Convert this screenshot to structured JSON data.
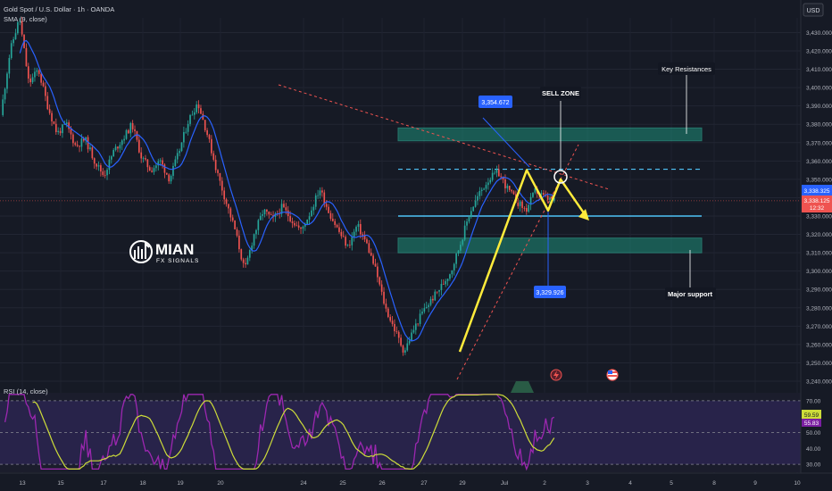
{
  "header": {
    "symbol": "Gold Spot / U.S. Dollar · 1h · OANDA",
    "indicator": "SMA (9, close)",
    "currency": "USD"
  },
  "logo": {
    "name": "MIAN",
    "tagline": "FX SIGNALS"
  },
  "price_axis": {
    "ticks": [
      "3,430.000",
      "3,420.000",
      "3,410.000",
      "3,400.000",
      "3,390.000",
      "3,380.000",
      "3,370.000",
      "3,360.000",
      "3,350.000",
      "3,340.000",
      "3,330.000",
      "3,320.000",
      "3,310.000",
      "3,300.000",
      "3,290.000",
      "3,280.000",
      "3,270.000",
      "3,260.000",
      "3,250.000",
      "3,240.000"
    ],
    "tick_values": [
      3430,
      3420,
      3410,
      3400,
      3390,
      3380,
      3370,
      3360,
      3350,
      3340,
      3330,
      3320,
      3310,
      3300,
      3290,
      3280,
      3270,
      3260,
      3250,
      3240
    ],
    "ylim": [
      3240,
      3438
    ],
    "badges": {
      "last": "3,338.325",
      "close": "3,338.125",
      "timer": "12:32"
    }
  },
  "time_axis": {
    "labels": [
      "13",
      "15",
      "17",
      "18",
      "19",
      "20",
      "24",
      "25",
      "26",
      "27",
      "29",
      "Jul",
      "2",
      "3",
      "4",
      "5",
      "8",
      "9",
      "10"
    ]
  },
  "annotations": {
    "key_resistance": "Key Resistances",
    "sell_zone": "SELL ZONE",
    "major_support": "Major support",
    "high_label": "3,354.672",
    "low_label": "3,329.926"
  },
  "rsi": {
    "title": "RSI (14, close)",
    "ticks": [
      "70.00",
      "60.00",
      "50.00",
      "40.00",
      "30.00"
    ],
    "tick_values": [
      70,
      60,
      50,
      40,
      30
    ],
    "ylim": [
      25,
      75
    ],
    "badges": {
      "value": "59.59",
      "ma": "55.83"
    }
  },
  "colors": {
    "background": "#161a25",
    "up": "#26a69a",
    "down": "#ef5350",
    "sma": "#2962ff",
    "zone": "#1e8f7a",
    "projection": "#ffeb3b",
    "annotation": "#2962ff",
    "rsi_line": "#9c27b0",
    "rsi_ma": "#cddc39"
  },
  "chart_data": {
    "type": "candlestick",
    "symbol": "XAUUSD",
    "timeframe": "1h",
    "ylim": [
      3240,
      3438
    ],
    "resistance_zone": [
      3371,
      3378
    ],
    "support_zone": [
      3310,
      3318
    ],
    "resistance_level": 3355.5,
    "support_level": 3330,
    "last_price": 3338.325,
    "swing_high": 3354.672,
    "swing_low": 3329.926,
    "projection": [
      3256,
      3355,
      3333,
      3350,
      3329
    ],
    "rsi_last": 59.59,
    "rsi_ma_last": 55.83,
    "keypoints": [
      3385,
      3420,
      3438,
      3402,
      3410,
      3390,
      3375,
      3380,
      3368,
      3372,
      3360,
      3352,
      3365,
      3372,
      3380,
      3362,
      3355,
      3360,
      3350,
      3365,
      3382,
      3392,
      3375,
      3355,
      3338,
      3322,
      3300,
      3320,
      3333,
      3328,
      3335,
      3328,
      3322,
      3332,
      3345,
      3332,
      3322,
      3313,
      3325,
      3315,
      3300,
      3280,
      3268,
      3256,
      3268,
      3278,
      3285,
      3292,
      3300,
      3315,
      3332,
      3342,
      3350,
      3354,
      3345,
      3338,
      3333,
      3344,
      3340,
      3338
    ]
  }
}
